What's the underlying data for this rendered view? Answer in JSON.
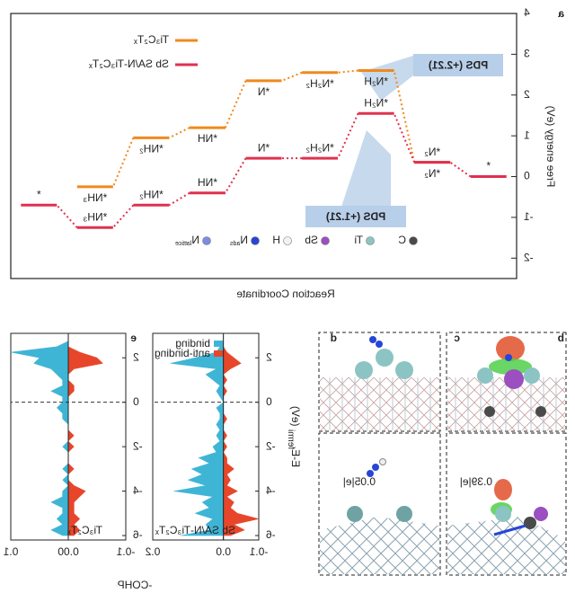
{
  "chart_data": [
    {
      "type": "step",
      "panel": "a",
      "ylabel": "Free energy (eV)",
      "xlabel": "Reaction Coordinate",
      "categories": [
        "*",
        "*N₂",
        "*N₂H",
        "*N₂H₂",
        "*N",
        "*NH",
        "*NH₂",
        "*NH₃",
        "*"
      ],
      "series": [
        {
          "name": "Ti₃C₂Tₓ",
          "color": "#f0891c",
          "values": [
            null,
            0.35,
            2.6,
            2.55,
            2.35,
            1.2,
            0.95,
            -0.25,
            null
          ]
        },
        {
          "name": "Sb SA/N-Ti₃C₂Tₓ",
          "color": "#e0314f",
          "values": [
            0,
            0.35,
            1.55,
            0.45,
            0.45,
            -0.4,
            -0.7,
            -1.25,
            -0.7
          ]
        }
      ],
      "ylim": [
        -2.5,
        4
      ],
      "yticks": [
        -2,
        -1,
        0,
        1,
        2,
        3,
        4
      ],
      "annotations": [
        {
          "text": "PDS (+2.21)",
          "color": "#f0891c"
        },
        {
          "text": "PDS (+1.21)",
          "color": "#e0314f"
        }
      ],
      "atom_legend": [
        {
          "symbol": "C",
          "color": "#4a4a4a"
        },
        {
          "symbol": "Ti",
          "color": "#8cc4c4"
        },
        {
          "symbol": "Sb",
          "color": "#9b4fc0"
        },
        {
          "symbol": "H",
          "color": "#f2f2f2"
        },
        {
          "symbol": "N",
          "sub": "ads",
          "color": "#2746d8"
        },
        {
          "symbol": "N",
          "sub": "lattice",
          "color": "#7d8ce0"
        }
      ]
    },
    {
      "type": "cohp",
      "panel_label": "Sb SA/N-Ti₃C₂Tₓ",
      "ylabel": "E-E",
      "ylabel_sub": "fermi",
      "ylabel_unit": " (eV)",
      "xlim": [
        -0.1,
        0.2
      ],
      "xticks": [
        -0.1,
        {
          "value": 0,
          "label": "0.0"
        },
        0.2
      ],
      "ylim": [
        -6.2,
        3.1
      ],
      "yticks": [
        -6,
        -4,
        -2,
        0,
        2
      ],
      "y": [
        -6,
        -5.75,
        -5.5,
        -5.25,
        -5,
        -4.75,
        -4.5,
        -4.25,
        -4,
        -3.75,
        -3.5,
        -3.25,
        -3,
        -2.75,
        -2.5,
        -2.25,
        -2,
        -1.75,
        -1.5,
        -1.25,
        -1,
        -0.75,
        -0.5,
        -0.25,
        0,
        0.25,
        0.5,
        0.75,
        1,
        1.25,
        1.5,
        1.75,
        2,
        2.25,
        2.5,
        2.75,
        3
      ],
      "series": [
        {
          "name": "binding",
          "color": "#3fb5d6",
          "values": [
            0.12,
            0.04,
            0.05,
            0.03,
            0.08,
            0.04,
            0.06,
            0.03,
            0.14,
            0.05,
            0.1,
            0.06,
            0.09,
            0.04,
            0.07,
            0.02,
            0.03,
            0.01,
            0.02,
            0.01,
            0.02,
            0.01,
            0.01,
            0.02,
            0,
            0.01,
            0.02,
            0.01,
            0.03,
            0.05,
            0.02,
            0.15,
            0.08,
            0.02,
            0.01,
            0,
            0
          ]
        },
        {
          "name": "anti-binding",
          "color": "#e8462a",
          "values": [
            -0.02,
            -0.06,
            -0.03,
            -0.1,
            -0.04,
            -0.02,
            -0.03,
            -0.01,
            -0.04,
            -0.01,
            -0.02,
            -0.01,
            -0.03,
            -0.01,
            -0.01,
            0,
            -0.01,
            0,
            -0.01,
            0,
            0,
            -0.01,
            0,
            0,
            0,
            0,
            -0.01,
            0,
            -0.01,
            0,
            -0.02,
            -0.05,
            -0.03,
            -0.01,
            0,
            0,
            0
          ]
        }
      ],
      "legend": true
    },
    {
      "type": "cohp",
      "panel": "e",
      "panel_label": "Ti₃C₂Tₓ",
      "xlabel": "-COHP",
      "xlim": [
        -0.1,
        0.1
      ],
      "xticks": [
        -0.1,
        {
          "value": 0,
          "label": "0.00"
        },
        0.1
      ],
      "ylim": [
        -6.2,
        3.1
      ],
      "yticks": [
        -6,
        -4,
        -2,
        0,
        2
      ],
      "y": [
        -6,
        -5.75,
        -5.5,
        -5.25,
        -5,
        -4.75,
        -4.5,
        -4.25,
        -4,
        -3.75,
        -3.5,
        -3.25,
        -3,
        -2.75,
        -2.5,
        -2.25,
        -2,
        -1.75,
        -1.5,
        -1.25,
        -1,
        -0.75,
        -0.5,
        -0.25,
        0,
        0.25,
        0.5,
        0.75,
        1,
        1.25,
        1.5,
        1.75,
        2,
        2.25,
        2.5,
        2.75,
        3
      ],
      "series": [
        {
          "name": "binding",
          "color": "#3fb5d6",
          "values": [
            0.01,
            0.03,
            0.01,
            0.02,
            0.01,
            0.01,
            0.03,
            0.01,
            0.01,
            0,
            0.01,
            0,
            0.01,
            0,
            0,
            0,
            0.01,
            0,
            0,
            0,
            0,
            0.01,
            0.01,
            0.02,
            0.01,
            0.01,
            0.03,
            0.01,
            0.01,
            0.02,
            0.03,
            0.06,
            0.05,
            0.1,
            0.02,
            0,
            0
          ]
        },
        {
          "name": "anti-binding",
          "color": "#e8462a",
          "values": [
            -0.01,
            -0.02,
            -0.01,
            -0.02,
            -0.01,
            -0.01,
            -0.01,
            -0.02,
            -0.03,
            -0.01,
            0,
            0,
            -0.01,
            0,
            0,
            0,
            -0.01,
            0,
            -0.01,
            0,
            0,
            0,
            0,
            0,
            0,
            0,
            -0.01,
            -0.01,
            0,
            0,
            -0.01,
            -0.06,
            -0.05,
            -0.02,
            0,
            0,
            0
          ]
        }
      ],
      "legend": false
    }
  ],
  "structures": {
    "letters": [
      "b",
      "c",
      "d"
    ],
    "charges": [
      "0.39|e|",
      "0.05|e|"
    ]
  }
}
